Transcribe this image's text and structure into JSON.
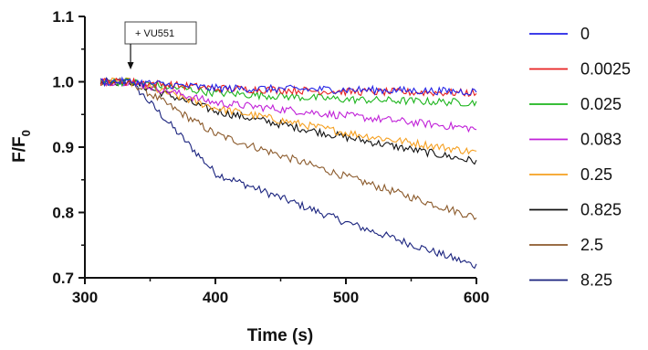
{
  "chart_data": {
    "type": "line",
    "title": "",
    "xlabel": "Time (s)",
    "ylabel_main": "F/F",
    "ylabel_sub": "0",
    "xlim": [
      300,
      600
    ],
    "ylim": [
      0.7,
      1.1
    ],
    "xticks": [
      300,
      400,
      500,
      600
    ],
    "yticks": [
      0.7,
      0.8,
      0.9,
      1.0,
      1.1
    ],
    "ytick_labels": [
      "0.7",
      "0.8",
      "0.9",
      "1.0",
      "1.1"
    ],
    "grid": false,
    "legend_position": "right",
    "annotation": {
      "text": "+ VU551",
      "x": 335
    },
    "series": [
      {
        "name": "0",
        "color": "#2323e6",
        "x": [
          312,
          335,
          400,
          500,
          600
        ],
        "y": [
          1.0,
          1.0,
          0.99,
          0.988,
          0.985
        ]
      },
      {
        "name": "0.0025",
        "color": "#e82020",
        "x": [
          312,
          335,
          400,
          500,
          600
        ],
        "y": [
          1.0,
          1.0,
          0.99,
          0.985,
          0.983
        ]
      },
      {
        "name": "0.025",
        "color": "#1db51d",
        "x": [
          312,
          335,
          400,
          500,
          600
        ],
        "y": [
          1.0,
          1.0,
          0.983,
          0.973,
          0.968
        ]
      },
      {
        "name": "0.083",
        "color": "#c020d8",
        "x": [
          312,
          335,
          400,
          500,
          600
        ],
        "y": [
          1.0,
          1.0,
          0.968,
          0.948,
          0.928
        ]
      },
      {
        "name": "0.25",
        "color": "#f5a021",
        "x": [
          312,
          335,
          400,
          500,
          600
        ],
        "y": [
          1.0,
          1.0,
          0.96,
          0.922,
          0.892
        ]
      },
      {
        "name": "0.825",
        "color": "#111111",
        "x": [
          312,
          335,
          400,
          500,
          600
        ],
        "y": [
          1.0,
          1.0,
          0.955,
          0.915,
          0.878
        ]
      },
      {
        "name": "2.5",
        "color": "#8b5a2b",
        "x": [
          312,
          335,
          400,
          500,
          600
        ],
        "y": [
          1.0,
          1.0,
          0.92,
          0.855,
          0.792
        ]
      },
      {
        "name": "8.25",
        "color": "#1a237e",
        "x": [
          312,
          335,
          400,
          500,
          600
        ],
        "y": [
          1.0,
          1.0,
          0.86,
          0.785,
          0.718
        ]
      }
    ]
  }
}
